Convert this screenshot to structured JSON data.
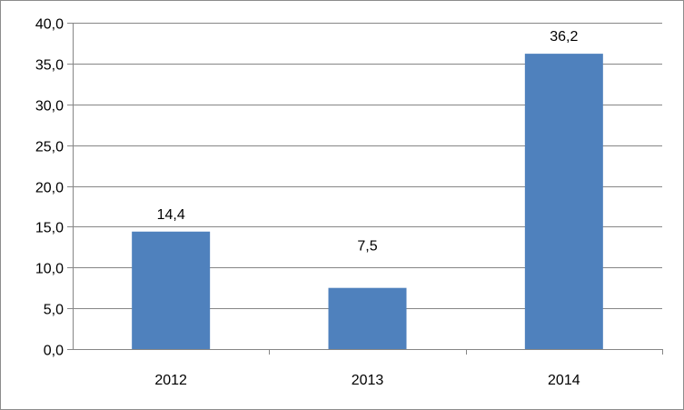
{
  "chart_data": {
    "type": "bar",
    "categories": [
      "2012",
      "2013",
      "2014"
    ],
    "values": [
      14.4,
      7.5,
      36.2
    ],
    "data_labels": [
      "14,4",
      "7,5",
      "36,2"
    ],
    "ylim": [
      0,
      40
    ],
    "y_ticks": [
      0,
      5,
      10,
      15,
      20,
      25,
      30,
      35,
      40
    ],
    "y_tick_labels": [
      "0,0",
      "5,0",
      "10,0",
      "15,0",
      "20,0",
      "25,0",
      "30,0",
      "35,0",
      "40,0"
    ],
    "grid": true,
    "legend": "none",
    "colors": {
      "bar": "#4f81bd",
      "grid": "#868686",
      "axis": "#868686"
    }
  }
}
